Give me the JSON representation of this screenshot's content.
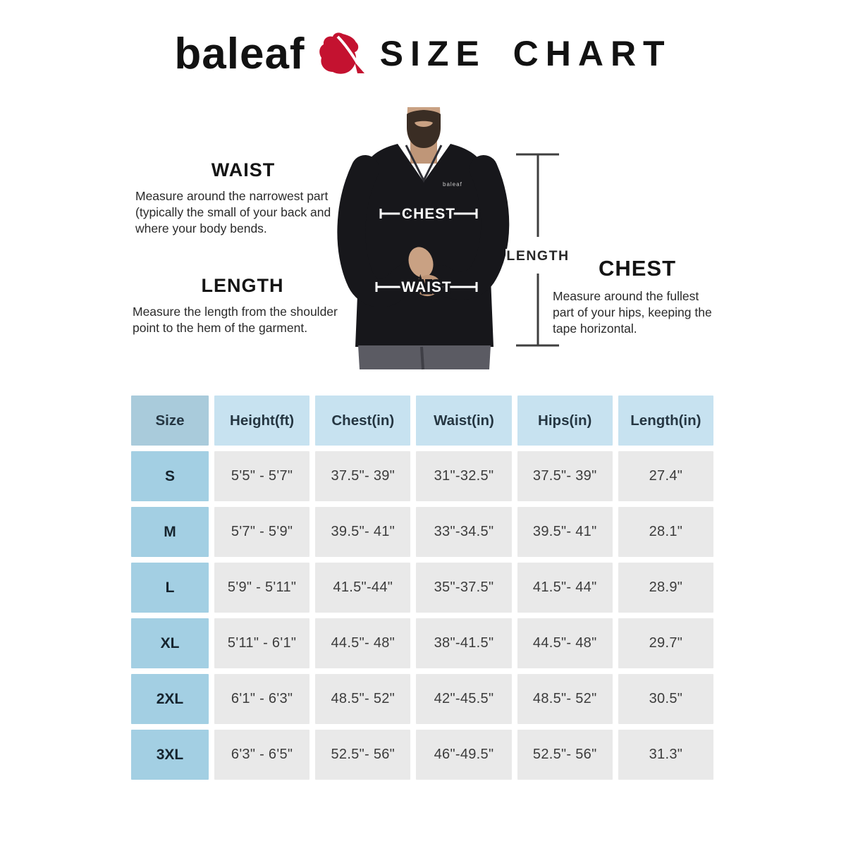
{
  "header": {
    "brand": "baleaf",
    "title": "SIZE CHART",
    "leaf_color": "#c41230",
    "text_color": "#121212"
  },
  "guide": {
    "waist": {
      "heading": "WAIST",
      "body": "Measure around the narrowest part (typically the small of your back and where your body bends."
    },
    "length": {
      "heading": "LENGTH",
      "body": "Measure the length from the shoulder point to the hem of the garment."
    },
    "chest": {
      "heading": "CHEST",
      "body": "Measure around the fullest part of your hips, keeping the tape horizontal."
    }
  },
  "figure": {
    "chest_label": "CHEST",
    "waist_label": "WAIST",
    "length_label": "LENGTH",
    "shirt_logo": "baleaf",
    "shirt_color": "#17171b",
    "shorts_color": "#5b5b63",
    "skin_color": "#c9a183",
    "measure_line_color": "#ffffff",
    "length_line_color": "#3f3f3f"
  },
  "chart_data": {
    "type": "table",
    "title": "SIZE CHART",
    "columns": [
      "Size",
      "Height(ft)",
      "Chest(in)",
      "Waist(in)",
      "Hips(in)",
      "Length(in)"
    ],
    "rows": [
      [
        "S",
        "5'5\" - 5'7\"",
        "37.5\"- 39\"",
        "31\"-32.5\"",
        "37.5\"- 39\"",
        "27.4\""
      ],
      [
        "M",
        "5'7\" - 5'9\"",
        "39.5\"- 41\"",
        "33\"-34.5\"",
        "39.5\"- 41\"",
        "28.1\""
      ],
      [
        "L",
        "5'9\" - 5'11\"",
        "41.5\"-44\"",
        "35\"-37.5\"",
        "41.5\"- 44\"",
        "28.9\""
      ],
      [
        "XL",
        "5'11\" - 6'1\"",
        "44.5\"- 48\"",
        "38\"-41.5\"",
        "44.5\"- 48\"",
        "29.7\""
      ],
      [
        "2XL",
        "6'1\" - 6'3\"",
        "48.5\"- 52\"",
        "42\"-45.5\"",
        "48.5\"- 52\"",
        "30.5\""
      ],
      [
        "3XL",
        "6'3\" - 6'5\"",
        "52.5\"- 56\"",
        "46\"-49.5\"",
        "52.5\"- 56\"",
        "31.3\""
      ]
    ]
  },
  "table_colors": {
    "header_bg": "#c7e2f0",
    "size_header_bg": "#a9cbdb",
    "size_col_bg": "#a3cfe3",
    "data_cell_bg": "#e9e9e9"
  }
}
